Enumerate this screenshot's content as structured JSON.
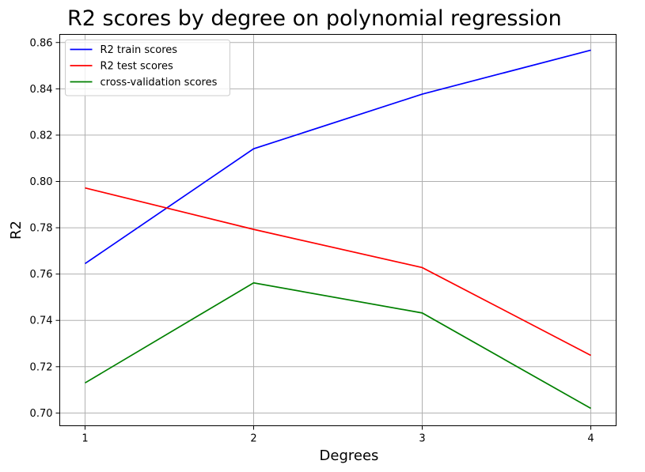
{
  "chart_data": {
    "type": "line",
    "title": "R2 scores by degree on polynomial regression",
    "xlabel": "Degrees",
    "ylabel": "R2",
    "x": [
      1,
      2,
      3,
      4
    ],
    "xticks": [
      "1",
      "2",
      "3",
      "4"
    ],
    "yticks": [
      "0.70",
      "0.72",
      "0.74",
      "0.76",
      "0.78",
      "0.80",
      "0.82",
      "0.84",
      "0.86"
    ],
    "xlim": [
      0.85,
      4.15
    ],
    "ylim": [
      0.6945,
      0.8635
    ],
    "grid": true,
    "legend_position": "top-left",
    "series": [
      {
        "name": "R2 train scores",
        "color": "#0000ff",
        "values": [
          0.7645,
          0.8141,
          0.8377,
          0.8567
        ]
      },
      {
        "name": "R2 test scores",
        "color": "#ff0000",
        "values": [
          0.7972,
          0.7793,
          0.7628,
          0.7249
        ]
      },
      {
        "name": "cross-validation scores",
        "color": "#008000",
        "values": [
          0.713,
          0.7562,
          0.7432,
          0.702
        ]
      }
    ]
  }
}
